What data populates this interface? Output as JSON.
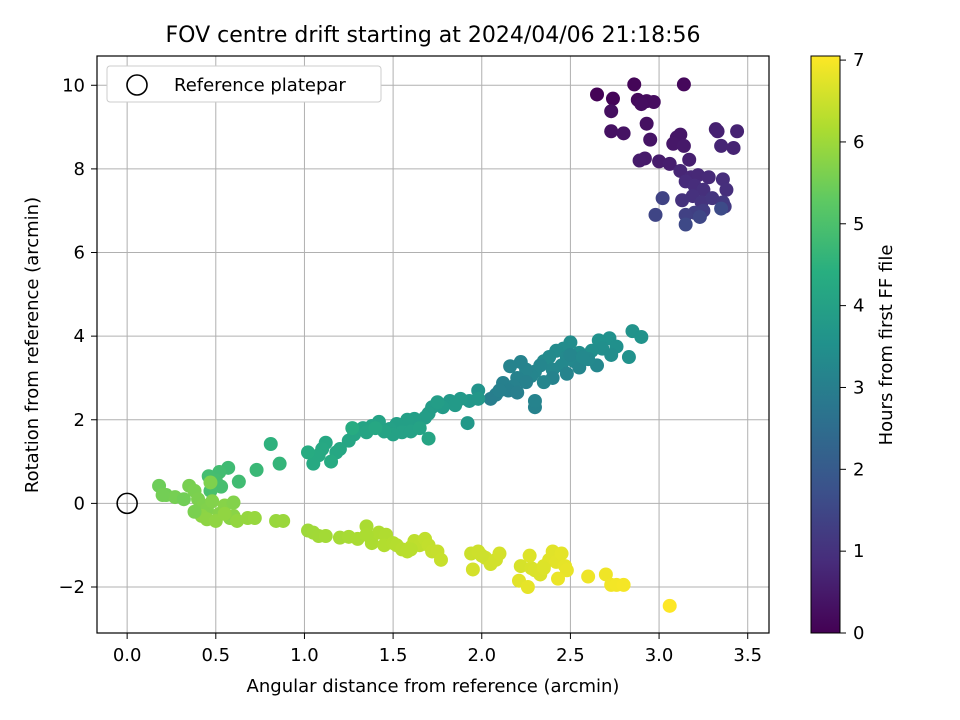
{
  "chart_data": {
    "type": "scatter",
    "title": "FOV centre drift starting at 2024/04/06 21:18:56",
    "xlabel": "Angular distance from reference (arcmin)",
    "ylabel": "Rotation from reference (arcmin)",
    "xlim": [
      -0.17,
      3.62
    ],
    "ylim": [
      -3.1,
      10.7
    ],
    "xticks": [
      "0.0",
      "0.5",
      "1.0",
      "1.5",
      "2.0",
      "2.5",
      "3.0",
      "3.5"
    ],
    "xtick_values": [
      0,
      0.5,
      1.0,
      1.5,
      2.0,
      2.5,
      3.0,
      3.5
    ],
    "yticks": [
      "−2",
      "0",
      "2",
      "4",
      "6",
      "8",
      "10"
    ],
    "ytick_values": [
      -2,
      0,
      2,
      4,
      6,
      8,
      10
    ],
    "grid": true,
    "legend": {
      "position": "top-left",
      "entries": [
        "Reference platepar"
      ]
    },
    "reference_point": {
      "x": 0,
      "y": 0
    },
    "colorbar": {
      "label": "Hours from first FF file",
      "colormap": "viridis",
      "range": [
        0,
        7.05
      ],
      "ticks": [
        "0",
        "1",
        "2",
        "3",
        "4",
        "5",
        "6",
        "7"
      ],
      "tick_values": [
        0,
        1,
        2,
        3,
        4,
        5,
        6,
        7
      ]
    },
    "points": [
      [
        2.65,
        9.78,
        0.05
      ],
      [
        2.74,
        9.68,
        0.08
      ],
      [
        2.86,
        10.02,
        0.1
      ],
      [
        3.14,
        10.02,
        0.15
      ],
      [
        2.88,
        9.65,
        0.18
      ],
      [
        2.93,
        9.62,
        0.2
      ],
      [
        2.97,
        9.6,
        0.22
      ],
      [
        2.9,
        9.55,
        0.25
      ],
      [
        2.73,
        9.38,
        0.28
      ],
      [
        2.93,
        9.08,
        0.3
      ],
      [
        2.73,
        8.9,
        0.32
      ],
      [
        2.8,
        8.85,
        0.35
      ],
      [
        2.95,
        8.7,
        0.38
      ],
      [
        3.1,
        8.75,
        0.4
      ],
      [
        3.12,
        8.82,
        0.42
      ],
      [
        3.08,
        8.6,
        0.45
      ],
      [
        3.14,
        8.55,
        0.48
      ],
      [
        2.92,
        8.25,
        0.5
      ],
      [
        2.89,
        8.2,
        0.52
      ],
      [
        3.0,
        8.18,
        0.55
      ],
      [
        3.06,
        8.12,
        0.58
      ],
      [
        3.17,
        8.22,
        0.6
      ],
      [
        3.32,
        8.95,
        0.62
      ],
      [
        3.33,
        8.9,
        0.65
      ],
      [
        3.44,
        8.9,
        0.68
      ],
      [
        3.42,
        8.5,
        0.7
      ],
      [
        3.35,
        8.55,
        0.72
      ],
      [
        3.12,
        7.95,
        0.75
      ],
      [
        3.18,
        7.8,
        0.78
      ],
      [
        3.22,
        7.85,
        0.8
      ],
      [
        3.28,
        7.8,
        0.82
      ],
      [
        3.15,
        7.7,
        0.85
      ],
      [
        3.2,
        7.6,
        0.88
      ],
      [
        3.36,
        7.75,
        0.9
      ],
      [
        3.38,
        7.5,
        0.92
      ],
      [
        3.25,
        7.5,
        0.95
      ],
      [
        3.19,
        7.35,
        0.98
      ],
      [
        3.13,
        7.25,
        1.0
      ],
      [
        3.24,
        7.2,
        1.05
      ],
      [
        3.3,
        7.3,
        1.1
      ],
      [
        3.36,
        7.2,
        1.15
      ],
      [
        3.37,
        7.1,
        1.2
      ],
      [
        3.25,
        7.0,
        1.25
      ],
      [
        3.2,
        6.95,
        1.3
      ],
      [
        3.15,
        6.9,
        1.35
      ],
      [
        3.02,
        7.3,
        1.4
      ],
      [
        2.98,
        6.9,
        1.45
      ],
      [
        3.23,
        6.85,
        1.5
      ],
      [
        3.15,
        6.67,
        1.55
      ],
      [
        3.35,
        7.05,
        1.6
      ],
      [
        2.85,
        4.12,
        3.6
      ],
      [
        2.9,
        3.98,
        3.58
      ],
      [
        2.83,
        3.5,
        3.56
      ],
      [
        2.72,
        3.95,
        3.54
      ],
      [
        2.66,
        3.9,
        3.52
      ],
      [
        2.76,
        3.75,
        3.5
      ],
      [
        2.68,
        3.7,
        3.48
      ],
      [
        2.62,
        3.65,
        3.46
      ],
      [
        2.73,
        3.55,
        3.44
      ],
      [
        2.55,
        3.6,
        3.42
      ],
      [
        2.5,
        3.85,
        3.4
      ],
      [
        2.46,
        3.7,
        3.38
      ],
      [
        2.42,
        3.65,
        3.36
      ],
      [
        2.38,
        3.5,
        3.34
      ],
      [
        2.35,
        3.4,
        3.32
      ],
      [
        2.48,
        3.5,
        3.3
      ],
      [
        2.52,
        3.4,
        3.28
      ],
      [
        2.45,
        3.3,
        3.26
      ],
      [
        2.4,
        3.2,
        3.24
      ],
      [
        2.33,
        3.3,
        3.22
      ],
      [
        2.3,
        3.15,
        3.2
      ],
      [
        2.28,
        3.05,
        3.18
      ],
      [
        2.25,
        3.2,
        3.16
      ],
      [
        2.22,
        3.38,
        3.14
      ],
      [
        2.16,
        3.28,
        3.12
      ],
      [
        2.2,
        3.0,
        3.1
      ],
      [
        2.25,
        2.9,
        3.08
      ],
      [
        2.18,
        2.8,
        3.06
      ],
      [
        2.12,
        2.88,
        3.04
      ],
      [
        2.15,
        2.7,
        3.02
      ],
      [
        2.2,
        2.65,
        3.0
      ],
      [
        2.08,
        2.6,
        3.0
      ],
      [
        2.05,
        2.5,
        2.98
      ],
      [
        2.3,
        2.3,
        3.1
      ],
      [
        2.3,
        2.45,
        3.12
      ],
      [
        2.4,
        3.0,
        3.14
      ],
      [
        2.48,
        3.1,
        3.16
      ],
      [
        2.55,
        3.25,
        3.2
      ],
      [
        2.65,
        3.3,
        3.25
      ],
      [
        2.6,
        3.45,
        3.3
      ],
      [
        2.35,
        2.9,
        3.2
      ],
      [
        2.5,
        3.55,
        3.22
      ],
      [
        2.57,
        3.5,
        3.3
      ],
      [
        2.1,
        2.7,
        3.05
      ],
      [
        1.98,
        2.7,
        3.6
      ],
      [
        1.93,
        2.45,
        3.7
      ],
      [
        1.98,
        2.5,
        3.72
      ],
      [
        1.88,
        2.5,
        3.76
      ],
      [
        1.82,
        2.45,
        3.78
      ],
      [
        1.85,
        2.35,
        3.8
      ],
      [
        1.92,
        1.92,
        3.75
      ],
      [
        1.78,
        2.3,
        3.82
      ],
      [
        1.72,
        2.3,
        3.84
      ],
      [
        1.7,
        2.15,
        3.86
      ],
      [
        1.75,
        2.42,
        3.88
      ],
      [
        1.68,
        2.05,
        3.9
      ],
      [
        1.62,
        2.02,
        3.92
      ],
      [
        1.58,
        2.0,
        3.94
      ],
      [
        1.52,
        1.9,
        3.96
      ],
      [
        1.48,
        1.78,
        3.98
      ],
      [
        1.55,
        1.7,
        4.0
      ],
      [
        1.5,
        1.65,
        4.02
      ],
      [
        1.42,
        1.95,
        4.04
      ],
      [
        1.38,
        1.85,
        4.06
      ],
      [
        1.33,
        1.8,
        4.08
      ],
      [
        1.35,
        1.7,
        4.1
      ],
      [
        1.28,
        1.65,
        4.12
      ],
      [
        1.25,
        1.5,
        4.14
      ],
      [
        1.2,
        1.3,
        4.16
      ],
      [
        1.18,
        1.22,
        4.18
      ],
      [
        1.12,
        1.45,
        4.2
      ],
      [
        1.1,
        1.3,
        4.22
      ],
      [
        1.08,
        1.15,
        4.24
      ],
      [
        1.05,
        0.95,
        4.26
      ],
      [
        1.15,
        1.0,
        4.28
      ],
      [
        1.02,
        1.22,
        4.3
      ],
      [
        1.7,
        1.55,
        4.1
      ],
      [
        1.6,
        1.72,
        4.0
      ],
      [
        1.65,
        1.8,
        4.05
      ],
      [
        1.45,
        1.72,
        4.08
      ],
      [
        0.81,
        1.42,
        4.5
      ],
      [
        0.86,
        0.95,
        4.6
      ],
      [
        0.73,
        0.8,
        4.7
      ],
      [
        0.57,
        0.85,
        4.8
      ],
      [
        0.63,
        0.52,
        4.82
      ],
      [
        0.52,
        0.75,
        4.85
      ],
      [
        0.46,
        0.65,
        4.88
      ],
      [
        0.5,
        0.55,
        4.9
      ],
      [
        0.53,
        0.4,
        4.92
      ],
      [
        0.47,
        0.3,
        4.95
      ],
      [
        1.27,
        1.8,
        4.3
      ],
      [
        1.4,
        1.8,
        4.2
      ],
      [
        0.18,
        0.42,
        5.45
      ],
      [
        0.22,
        0.2,
        5.5
      ],
      [
        0.27,
        0.15,
        5.55
      ],
      [
        0.35,
        0.42,
        5.58
      ],
      [
        0.38,
        0.3,
        5.6
      ],
      [
        0.4,
        0.1,
        5.62
      ],
      [
        0.43,
        -0.05,
        5.65
      ],
      [
        0.45,
        -0.15,
        5.68
      ],
      [
        0.48,
        0.05,
        5.7
      ],
      [
        0.52,
        -0.25,
        5.72
      ],
      [
        0.55,
        -0.05,
        5.74
      ],
      [
        0.58,
        -0.35,
        5.76
      ],
      [
        0.6,
        -0.3,
        5.78
      ],
      [
        0.42,
        -0.3,
        5.8
      ],
      [
        0.45,
        -0.38,
        5.82
      ],
      [
        0.5,
        -0.42,
        5.84
      ],
      [
        0.55,
        -0.25,
        5.86
      ],
      [
        0.62,
        -0.42,
        5.88
      ],
      [
        0.68,
        -0.35,
        5.9
      ],
      [
        0.72,
        -0.35,
        5.92
      ],
      [
        0.84,
        -0.42,
        5.94
      ],
      [
        0.88,
        -0.42,
        5.96
      ],
      [
        0.32,
        0.1,
        5.5
      ],
      [
        0.2,
        0.2,
        5.52
      ],
      [
        0.38,
        -0.2,
        5.6
      ],
      [
        0.47,
        0.5,
        5.65
      ],
      [
        0.6,
        0.02,
        5.7
      ],
      [
        1.02,
        -0.65,
        6.0
      ],
      [
        1.05,
        -0.7,
        6.02
      ],
      [
        1.08,
        -0.78,
        6.04
      ],
      [
        1.12,
        -0.78,
        6.06
      ],
      [
        1.2,
        -0.82,
        6.08
      ],
      [
        1.25,
        -0.8,
        6.1
      ],
      [
        1.3,
        -0.85,
        6.12
      ],
      [
        1.35,
        -0.55,
        6.14
      ],
      [
        1.38,
        -0.95,
        6.16
      ],
      [
        1.42,
        -0.7,
        6.18
      ],
      [
        1.46,
        -0.75,
        6.2
      ],
      [
        1.45,
        -1.0,
        6.22
      ],
      [
        1.5,
        -0.95,
        6.24
      ],
      [
        1.52,
        -1.0,
        6.26
      ],
      [
        1.55,
        -1.1,
        6.28
      ],
      [
        1.58,
        -1.15,
        6.3
      ],
      [
        1.6,
        -1.05,
        6.32
      ],
      [
        1.62,
        -0.9,
        6.34
      ],
      [
        1.65,
        -1.0,
        6.36
      ],
      [
        1.68,
        -0.85,
        6.38
      ],
      [
        1.7,
        -1.0,
        6.4
      ],
      [
        1.72,
        -1.15,
        6.42
      ],
      [
        1.75,
        -1.15,
        6.44
      ],
      [
        1.77,
        -1.35,
        6.46
      ],
      [
        1.94,
        -1.2,
        6.5
      ],
      [
        1.98,
        -1.15,
        6.52
      ],
      [
        2.02,
        -1.3,
        6.54
      ],
      [
        2.05,
        -1.45,
        6.56
      ],
      [
        2.08,
        -1.35,
        6.58
      ],
      [
        2.1,
        -1.2,
        6.6
      ],
      [
        1.95,
        -1.58,
        6.6
      ],
      [
        2.22,
        -1.5,
        6.62
      ],
      [
        2.28,
        -1.55,
        6.64
      ],
      [
        2.3,
        -1.6,
        6.66
      ],
      [
        2.33,
        -1.7,
        6.68
      ],
      [
        2.35,
        -1.5,
        6.7
      ],
      [
        2.38,
        -1.35,
        6.72
      ],
      [
        2.4,
        -1.15,
        6.74
      ],
      [
        2.42,
        -1.4,
        6.76
      ],
      [
        2.45,
        -1.2,
        6.78
      ],
      [
        2.47,
        -1.5,
        6.8
      ],
      [
        2.48,
        -1.6,
        6.82
      ],
      [
        2.27,
        -1.25,
        6.7
      ],
      [
        2.21,
        -1.85,
        6.75
      ],
      [
        2.26,
        -2.0,
        6.8
      ],
      [
        2.43,
        -1.8,
        6.85
      ],
      [
        2.6,
        -1.75,
        6.88
      ],
      [
        2.7,
        -1.7,
        6.9
      ],
      [
        2.73,
        -1.95,
        6.92
      ],
      [
        2.76,
        -1.95,
        6.94
      ],
      [
        2.8,
        -1.95,
        6.96
      ],
      [
        3.06,
        -2.45,
        7.05
      ],
      [
        1.35,
        -0.75,
        6.15
      ],
      [
        1.6,
        -1.1,
        6.3
      ],
      [
        2.35,
        -1.55,
        6.7
      ],
      [
        2.0,
        -1.25,
        6.52
      ]
    ]
  }
}
